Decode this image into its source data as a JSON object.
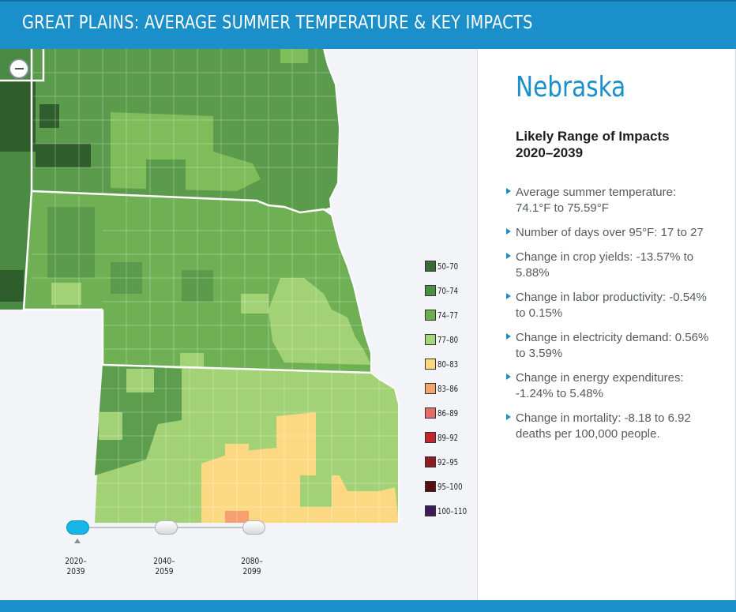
{
  "header": {
    "title": "GREAT PLAINS: AVERAGE SUMMER TEMPERATURE & KEY IMPACTS"
  },
  "map": {
    "zoom_out_label": "−",
    "colors": {
      "background": "#f2f4f7",
      "county_dark": "#3f7a3a",
      "county_mid": "#58994a",
      "county_light": "#7fbd5a",
      "county_pale": "#a9d47a",
      "county_warm": "#fdd882",
      "county_hot": "#f6a072",
      "border": "#ffffff"
    },
    "legend": [
      {
        "label": "50–70",
        "color": "#3a6b34"
      },
      {
        "label": "70–74",
        "color": "#4e8d45"
      },
      {
        "label": "74–77",
        "color": "#6cae52"
      },
      {
        "label": "77–80",
        "color": "#a5d57a"
      },
      {
        "label": "80–83",
        "color": "#ffd97a"
      },
      {
        "label": "83–86",
        "color": "#f5a36d"
      },
      {
        "label": "86–89",
        "color": "#e56a6a"
      },
      {
        "label": "89–92",
        "color": "#c1272d"
      },
      {
        "label": "92–95",
        "color": "#8d1c1f"
      },
      {
        "label": "95–100",
        "color": "#5a0d10"
      },
      {
        "label": "100–110",
        "color": "#3d1a5c"
      }
    ]
  },
  "timeline": {
    "periods": [
      "2020–2039",
      "2040–2059",
      "2080–2099"
    ],
    "selected": "2020–2039"
  },
  "info": {
    "state": "Nebraska",
    "impacts_title_line1": "Likely Range of Impacts",
    "impacts_title_line2": "2020–2039",
    "impacts": [
      "Average summer temperature: 74.1°F to 75.59°F",
      "Number of days over 95°F: 17 to 27",
      "Change in crop yields: -13.57% to 5.88%",
      "Change in labor productivity: -0.54% to 0.15%",
      "Change in electricity demand: 0.56% to 3.59%",
      "Change in energy expenditures: -1.24% to 5.48%",
      "Change in mortality: -8.18 to 6.92 deaths per 100,000 people."
    ]
  }
}
